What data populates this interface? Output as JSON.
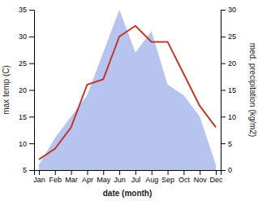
{
  "chart_data": {
    "type": "line",
    "xlabel": "date (month)",
    "ylabel": "max temp (C)",
    "y2label": "med. precipitation (kg/m2)",
    "categories": [
      "Jan",
      "Feb",
      "Mar",
      "Apr",
      "May",
      "Jun",
      "Jul",
      "Aug",
      "Sep",
      "Oct",
      "Nov",
      "Dec"
    ],
    "series": [
      {
        "type": "area",
        "color": "#b8c4f0",
        "axis": "y2",
        "values": [
          1,
          6,
          10,
          14,
          22,
          30,
          22,
          26,
          16,
          14,
          10,
          1
        ]
      },
      {
        "type": "line",
        "color": "#c0392b",
        "values": [
          7,
          9,
          13,
          21,
          22,
          30,
          32,
          29,
          29,
          23,
          17,
          13
        ]
      }
    ],
    "ylim": [
      5,
      35
    ],
    "yticks": [
      5,
      10,
      15,
      20,
      25,
      30,
      35
    ],
    "y2lim": [
      0,
      30
    ],
    "y2ticks": [
      0,
      5,
      10,
      15,
      20,
      25,
      30
    ],
    "grid": false
  }
}
